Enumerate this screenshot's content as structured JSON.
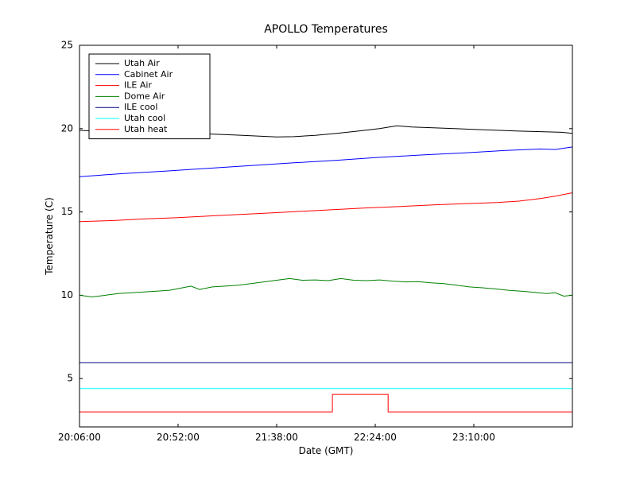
{
  "chart_data": {
    "type": "line",
    "title": "APOLLO Temperatures",
    "xlabel": "Date (GMT)",
    "ylabel": "Temperature (C)",
    "x_tick_labels": [
      "20:06:00",
      "20:52:00",
      "21:38:00",
      "22:24:00",
      "23:10:00"
    ],
    "x_tick_minutes": [
      0,
      46,
      92,
      138,
      184
    ],
    "x_range_minutes": [
      0,
      230
    ],
    "ylim": [
      2.1,
      25
    ],
    "y_ticks": [
      5,
      10,
      15,
      20,
      25
    ],
    "grid": false,
    "legend_position": "upper-left",
    "axis_color": "#000000",
    "background_color": "#ffffff",
    "series": [
      {
        "name": "Utah Air",
        "color": "#000000",
        "points": [
          [
            0,
            19.9
          ],
          [
            12,
            19.82
          ],
          [
            24,
            19.78
          ],
          [
            36,
            19.82
          ],
          [
            48,
            19.75
          ],
          [
            60,
            19.68
          ],
          [
            72,
            19.62
          ],
          [
            84,
            19.55
          ],
          [
            92,
            19.5
          ],
          [
            100,
            19.52
          ],
          [
            110,
            19.6
          ],
          [
            120,
            19.72
          ],
          [
            130,
            19.85
          ],
          [
            140,
            20.0
          ],
          [
            148,
            20.17
          ],
          [
            155,
            20.1
          ],
          [
            165,
            20.05
          ],
          [
            175,
            20.0
          ],
          [
            185,
            19.95
          ],
          [
            195,
            19.9
          ],
          [
            205,
            19.85
          ],
          [
            215,
            19.82
          ],
          [
            225,
            19.78
          ],
          [
            230,
            19.72
          ]
        ]
      },
      {
        "name": "Cabinet Air",
        "color": "#0000ff",
        "points": [
          [
            0,
            17.12
          ],
          [
            20,
            17.3
          ],
          [
            40,
            17.45
          ],
          [
            60,
            17.62
          ],
          [
            80,
            17.78
          ],
          [
            100,
            17.95
          ],
          [
            120,
            18.1
          ],
          [
            140,
            18.28
          ],
          [
            160,
            18.42
          ],
          [
            180,
            18.55
          ],
          [
            200,
            18.7
          ],
          [
            215,
            18.78
          ],
          [
            222,
            18.75
          ],
          [
            230,
            18.9
          ]
        ]
      },
      {
        "name": "ILE Air",
        "color": "#ff0000",
        "points": [
          [
            0,
            14.42
          ],
          [
            15,
            14.48
          ],
          [
            30,
            14.58
          ],
          [
            45,
            14.65
          ],
          [
            60,
            14.75
          ],
          [
            75,
            14.85
          ],
          [
            90,
            14.95
          ],
          [
            105,
            15.05
          ],
          [
            120,
            15.15
          ],
          [
            135,
            15.25
          ],
          [
            150,
            15.33
          ],
          [
            165,
            15.42
          ],
          [
            180,
            15.5
          ],
          [
            195,
            15.57
          ],
          [
            205,
            15.65
          ],
          [
            215,
            15.8
          ],
          [
            222,
            15.95
          ],
          [
            230,
            16.15
          ]
        ]
      },
      {
        "name": "Dome Air",
        "color": "#008000",
        "points": [
          [
            0,
            10.0
          ],
          [
            6,
            9.9
          ],
          [
            12,
            10.0
          ],
          [
            18,
            10.1
          ],
          [
            24,
            10.15
          ],
          [
            30,
            10.2
          ],
          [
            36,
            10.25
          ],
          [
            42,
            10.3
          ],
          [
            48,
            10.45
          ],
          [
            52,
            10.55
          ],
          [
            56,
            10.35
          ],
          [
            62,
            10.5
          ],
          [
            68,
            10.55
          ],
          [
            74,
            10.6
          ],
          [
            80,
            10.7
          ],
          [
            86,
            10.8
          ],
          [
            92,
            10.9
          ],
          [
            98,
            11.0
          ],
          [
            104,
            10.9
          ],
          [
            110,
            10.92
          ],
          [
            116,
            10.88
          ],
          [
            122,
            11.0
          ],
          [
            128,
            10.9
          ],
          [
            134,
            10.88
          ],
          [
            140,
            10.92
          ],
          [
            146,
            10.85
          ],
          [
            152,
            10.8
          ],
          [
            158,
            10.82
          ],
          [
            164,
            10.75
          ],
          [
            170,
            10.7
          ],
          [
            176,
            10.6
          ],
          [
            182,
            10.5
          ],
          [
            188,
            10.45
          ],
          [
            194,
            10.38
          ],
          [
            200,
            10.3
          ],
          [
            206,
            10.25
          ],
          [
            212,
            10.18
          ],
          [
            218,
            10.1
          ],
          [
            222,
            10.15
          ],
          [
            226,
            9.95
          ],
          [
            230,
            10.0
          ]
        ]
      },
      {
        "name": "ILE cool",
        "color": "#000080",
        "points": [
          [
            0,
            5.95
          ],
          [
            230,
            5.95
          ]
        ]
      },
      {
        "name": "Utah cool",
        "color": "#00ffff",
        "points": [
          [
            0,
            4.4
          ],
          [
            230,
            4.4
          ]
        ]
      },
      {
        "name": "Utah heat",
        "color": "#ff0000",
        "points": [
          [
            0,
            3.0
          ],
          [
            118,
            3.0
          ],
          [
            118,
            4.05
          ],
          [
            144,
            4.05
          ],
          [
            144,
            3.0
          ],
          [
            230,
            3.0
          ]
        ]
      }
    ]
  }
}
